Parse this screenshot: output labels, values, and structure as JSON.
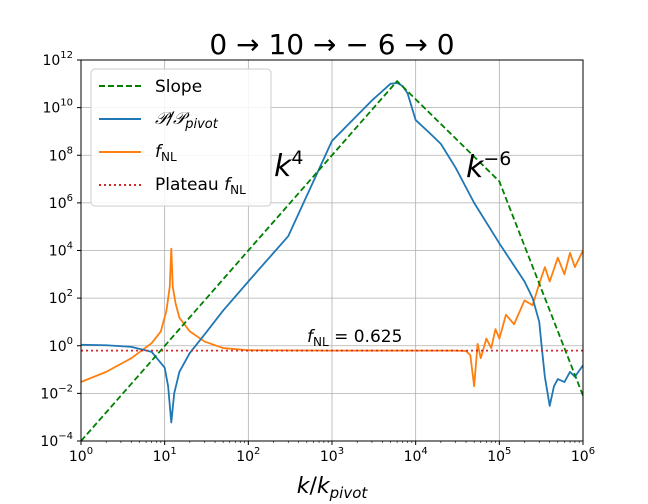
{
  "chart_data": {
    "type": "line",
    "title": "0 → 10 → − 6 → 0",
    "xlabel": "k/k_pivot",
    "ylabel": "",
    "xscale": "log",
    "yscale": "log",
    "xlim": [
      1,
      1000000
    ],
    "ylim": [
      0.0001,
      1000000000000
    ],
    "grid": true,
    "legend_position": "top-left",
    "x_ticks": [
      "10^0",
      "10^1",
      "10^2",
      "10^3",
      "10^4",
      "10^5",
      "10^6"
    ],
    "y_ticks": [
      "10^-4",
      "10^-2",
      "10^0",
      "10^2",
      "10^4",
      "10^6",
      "10^8",
      "10^10",
      "10^12"
    ],
    "annotations": [
      {
        "text": "k^4",
        "x": 300,
        "y": 10000000
      },
      {
        "text": "k^-6",
        "x": 70000,
        "y": 10000000
      },
      {
        "text": "f_NL = 0.625",
        "x": 600,
        "y": 1.2
      }
    ],
    "series": [
      {
        "name": "Slope",
        "style": "dashed",
        "color": "#008000",
        "x": [
          1,
          13,
          100,
          1000,
          6000,
          100000,
          1000000
        ],
        "y": [
          0.0001,
          2.8,
          10000,
          100000000,
          130000000000,
          8000000,
          0.008
        ]
      },
      {
        "name": "P/P_pivot",
        "style": "solid",
        "color": "#1f77b4",
        "x": [
          1,
          2,
          4,
          7,
          10,
          11,
          12,
          13,
          15,
          20,
          30,
          50,
          100,
          300,
          1000,
          3000,
          5000,
          6000,
          7000,
          8000,
          10000,
          15000,
          20000,
          30000,
          50000,
          100000,
          200000,
          250000,
          300000,
          320000,
          350000,
          400000,
          450000,
          500000,
          600000,
          700000,
          800000,
          1000000
        ],
        "y": [
          1.1,
          1.05,
          0.9,
          0.55,
          0.12,
          0.02,
          0.0006,
          0.01,
          0.08,
          0.5,
          3,
          30,
          500,
          40000,
          400000000,
          20000000000,
          100000000000,
          110000000000,
          80000000000,
          40000000000,
          3000000000,
          800000000,
          300000000,
          30000000,
          1000000,
          20000,
          500,
          100,
          10,
          1,
          0.05,
          0.003,
          0.02,
          0.04,
          0.03,
          0.08,
          0.05,
          0.15
        ]
      },
      {
        "name": "f_NL",
        "style": "solid",
        "color": "#ff7f0e",
        "x": [
          1,
          2,
          4,
          7,
          9,
          10.5,
          11.5,
          12,
          12.5,
          13.5,
          15,
          20,
          30,
          50,
          100,
          1000,
          10000,
          30000,
          40000,
          45000,
          50000,
          55000,
          60000,
          70000,
          80000,
          90000,
          100000,
          120000,
          150000,
          200000,
          250000,
          300000,
          350000,
          400000,
          500000,
          600000,
          700000,
          800000,
          1000000
        ],
        "y": [
          0.03,
          0.08,
          0.3,
          1.3,
          4,
          30,
          300,
          12000,
          300,
          60,
          15,
          4,
          1.5,
          0.8,
          0.65,
          0.625,
          0.625,
          0.625,
          0.6,
          0.4,
          0.02,
          1.2,
          0.3,
          2,
          0.8,
          5,
          2,
          20,
          8,
          80,
          50,
          400,
          2000,
          500,
          5000,
          1000,
          8000,
          2000,
          10000
        ]
      },
      {
        "name": "Plateau f_NL",
        "style": "dotted",
        "color": "#d62728",
        "x": [
          1,
          1000000
        ],
        "y": [
          0.625,
          0.625
        ]
      }
    ]
  }
}
